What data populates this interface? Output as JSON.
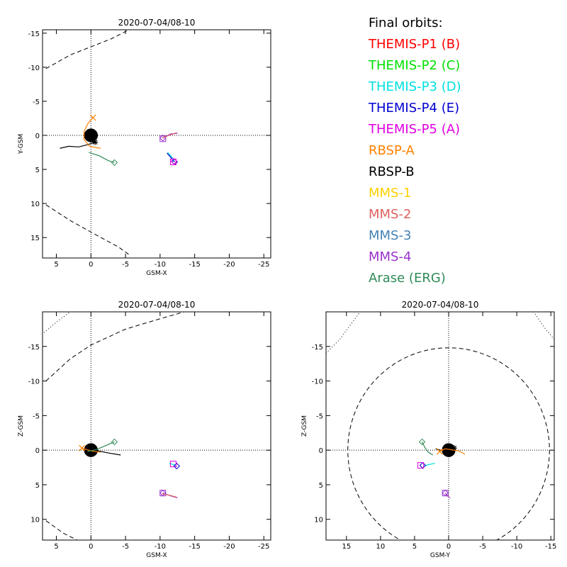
{
  "legend": {
    "title": "Final orbits:",
    "items": [
      {
        "label": "THEMIS-P1 (B)",
        "color": "#ff0000"
      },
      {
        "label": "THEMIS-P2 (C)",
        "color": "#00e000"
      },
      {
        "label": "THEMIS-P3 (D)",
        "color": "#00e0e0"
      },
      {
        "label": "THEMIS-P4 (E)",
        "color": "#0000d0"
      },
      {
        "label": "THEMIS-P5 (A)",
        "color": "#e000e0"
      },
      {
        "label": "RBSP-A",
        "color": "#ff8000"
      },
      {
        "label": "RBSP-B",
        "color": "#000000"
      },
      {
        "label": "MMS-1",
        "color": "#ffd000"
      },
      {
        "label": "MMS-2",
        "color": "#e06060"
      },
      {
        "label": "MMS-3",
        "color": "#4682b4"
      },
      {
        "label": "MMS-4",
        "color": "#9932cc"
      },
      {
        "label": "Arase (ERG)",
        "color": "#2e8b57"
      }
    ]
  },
  "chart_data": [
    {
      "type": "scatter",
      "title": "2020-07-04/08-10",
      "xlabel": "GSM-X",
      "ylabel": "Y-GSM",
      "xlim": [
        7,
        -26
      ],
      "ylim": [
        -15.5,
        18
      ],
      "xticks": [
        5,
        0,
        -5,
        -10,
        -15,
        -20,
        -25
      ],
      "yticks": [
        -15,
        -10,
        -5,
        0,
        5,
        10,
        15
      ],
      "xtick_labels": [
        "5",
        "0",
        "-5",
        "-10",
        "-15",
        "-20",
        "-25"
      ],
      "ytick_labels": [
        "-15",
        "-10",
        "-5",
        "0",
        "5",
        "10",
        "15"
      ],
      "earth": {
        "x": 0,
        "y": 0,
        "r": 1
      },
      "boundaries": [
        {
          "style": "dashed",
          "points": [
            [
              6.5,
              -9.8
            ],
            [
              3,
              -11.8
            ],
            [
              0,
              -13
            ],
            [
              -3,
              -14.2
            ],
            [
              -5.5,
              -15.5
            ]
          ]
        },
        {
          "style": "dashed",
          "points": [
            [
              6.5,
              10.2
            ],
            [
              3,
              12.5
            ],
            [
              0,
              14.2
            ],
            [
              -4,
              16.4
            ],
            [
              -5.5,
              17.5
            ]
          ]
        }
      ],
      "series": [
        {
          "color": "#000000",
          "marker": "asterisk",
          "points": [
            [
              4.5,
              1.9
            ],
            [
              3.2,
              1.6
            ],
            [
              1.8,
              1.7
            ],
            [
              0.6,
              1.4
            ],
            [
              -0.6,
              1.0
            ]
          ]
        },
        {
          "color": "#ff8000",
          "marker": "x",
          "points": [
            [
              -1.4,
              1.9
            ],
            [
              0.2,
              1.6
            ],
            [
              1.0,
              0.6
            ],
            [
              1.0,
              -0.6
            ],
            [
              0.4,
              -1.8
            ],
            [
              -0.3,
              -2.6
            ]
          ]
        },
        {
          "color": "#2e8b57",
          "marker": "diamond",
          "points": [
            [
              0.3,
              2.5
            ],
            [
              -1.2,
              3.0
            ],
            [
              -2.5,
              3.7
            ],
            [
              -3.4,
              4.0
            ]
          ]
        },
        {
          "color": "#0000d0",
          "marker": "diamond",
          "points": [
            [
              -11,
              2.6
            ],
            [
              -11.6,
              3.3
            ],
            [
              -12.1,
              3.9
            ]
          ]
        },
        {
          "color": "#00e0e0",
          "marker": "none",
          "points": [
            [
              -11.1,
              2.5
            ],
            [
              -11.7,
              3.2
            ],
            [
              -12.0,
              3.7
            ]
          ]
        },
        {
          "color": "#e000e0",
          "marker": "square",
          "points": [
            [
              -11.9,
              3.9
            ]
          ]
        },
        {
          "color": "#e000e0",
          "marker": "diamond",
          "points": [
            [
              -12.0,
              3.8
            ]
          ]
        },
        {
          "color": "#9932cc",
          "marker": "diamond",
          "points": [
            [
              -12.5,
              -0.3
            ],
            [
              -11.5,
              -0.2
            ],
            [
              -10.4,
              0.4
            ]
          ]
        },
        {
          "color": "#9932cc",
          "marker": "square",
          "points": [
            [
              -10.4,
              0.5
            ]
          ]
        },
        {
          "color": "#e06060",
          "marker": "none",
          "points": [
            [
              -12.4,
              -0.4
            ],
            [
              -11.3,
              0.0
            ],
            [
              -10.3,
              0.4
            ]
          ]
        }
      ]
    },
    {
      "type": "scatter",
      "title": "2020-07-04/08-10",
      "xlabel": "GSM-X",
      "ylabel": "Z-GSM",
      "xlim": [
        7,
        -26
      ],
      "ylim": [
        -20,
        13
      ],
      "xticks": [
        5,
        0,
        -5,
        -10,
        -15,
        -20,
        -25
      ],
      "yticks": [
        -15,
        -10,
        -5,
        0,
        5,
        10
      ],
      "xtick_labels": [
        "5",
        "0",
        "-5",
        "-10",
        "-15",
        "-20",
        "-25"
      ],
      "ytick_labels": [
        "-15",
        "-10",
        "-5",
        "0",
        "5",
        "10"
      ],
      "earth": {
        "x": 0,
        "y": 0,
        "r": 1
      },
      "boundaries": [
        {
          "style": "dashed",
          "points": [
            [
              6.5,
              10.2
            ],
            [
              4,
              12
            ],
            [
              2,
              13
            ]
          ]
        },
        {
          "style": "dashed",
          "points": [
            [
              6.5,
              -10
            ],
            [
              3,
              -13.2
            ],
            [
              0,
              -15.2
            ],
            [
              -5,
              -17.5
            ],
            [
              -10,
              -19
            ],
            [
              -13.5,
              -20
            ]
          ]
        },
        {
          "style": "dotted",
          "points": [
            [
              6.8,
              -17
            ],
            [
              5,
              -18.5
            ],
            [
              3,
              -20
            ]
          ]
        }
      ],
      "series": [
        {
          "color": "#000000",
          "marker": "asterisk",
          "points": [
            [
              -4.3,
              0.7
            ],
            [
              -2.5,
              0.4
            ],
            [
              -1.0,
              0.1
            ],
            [
              0.5,
              -0.3
            ]
          ]
        },
        {
          "color": "#ff8000",
          "marker": "x",
          "points": [
            [
              -1.4,
              0.3
            ],
            [
              0,
              0.1
            ],
            [
              1.3,
              -0.3
            ]
          ]
        },
        {
          "color": "#2e8b57",
          "marker": "diamond",
          "points": [
            [
              0.5,
              0.2
            ],
            [
              -0.8,
              -0.1
            ],
            [
              -2.0,
              -0.6
            ],
            [
              -3.4,
              -1.2
            ]
          ]
        },
        {
          "color": "#9932cc",
          "marker": "diamond",
          "points": [
            [
              -12.5,
              6.9
            ],
            [
              -11.5,
              6.6
            ],
            [
              -10.4,
              6.2
            ]
          ]
        },
        {
          "color": "#9932cc",
          "marker": "square",
          "points": [
            [
              -10.4,
              6.2
            ]
          ]
        },
        {
          "color": "#e06060",
          "marker": "none",
          "points": [
            [
              -12.4,
              6.8
            ],
            [
              -11.3,
              6.5
            ],
            [
              -10.3,
              6.3
            ]
          ]
        },
        {
          "color": "#00e0e0",
          "marker": "none",
          "points": [
            [
              -11.3,
              1.9
            ],
            [
              -12.0,
              2.1
            ],
            [
              -12.3,
              2.4
            ]
          ]
        },
        {
          "color": "#0000d0",
          "marker": "diamond",
          "points": [
            [
              -12.4,
              2.3
            ]
          ]
        },
        {
          "color": "#e000e0",
          "marker": "square",
          "points": [
            [
              -11.9,
              2.0
            ]
          ]
        }
      ]
    },
    {
      "type": "scatter",
      "title": "2020-07-04/08-10",
      "xlabel": "GSM-Y",
      "ylabel": "Z-GSM",
      "xlim": [
        18,
        -15.5
      ],
      "ylim": [
        -20,
        13
      ],
      "xticks": [
        15,
        10,
        5,
        0,
        -5,
        -10,
        -15
      ],
      "yticks": [
        -15,
        -10,
        -5,
        0,
        5,
        10
      ],
      "xtick_labels": [
        "15",
        "10",
        "5",
        "0",
        "-5",
        "-10",
        "-15"
      ],
      "ytick_labels": [
        "-15",
        "-10",
        "-5",
        "0",
        "5",
        "10"
      ],
      "earth": {
        "x": 0,
        "y": 0,
        "r": 1
      },
      "boundaries": [
        {
          "style": "dashed_circle",
          "cx": 0,
          "cy": 0,
          "r": 14.8
        },
        {
          "style": "dotted",
          "points": [
            [
              18,
              -14
            ],
            [
              16,
              -16
            ],
            [
              13,
              -20
            ]
          ]
        },
        {
          "style": "dotted",
          "points": [
            [
              -15.5,
              -16
            ],
            [
              -14,
              -17.8
            ],
            [
              -12.5,
              -20
            ]
          ]
        }
      ],
      "series": [
        {
          "color": "#000000",
          "marker": "asterisk",
          "points": [
            [
              1.9,
              -0.2
            ],
            [
              0.5,
              0.2
            ],
            [
              -0.8,
              -0.3
            ]
          ]
        },
        {
          "color": "#ff8000",
          "marker": "x",
          "points": [
            [
              -2.4,
              0.6
            ],
            [
              -1.5,
              0.1
            ],
            [
              0.5,
              -0.2
            ],
            [
              1.3,
              0.2
            ]
          ]
        },
        {
          "color": "#2e8b57",
          "marker": "diamond",
          "points": [
            [
              2.3,
              0.7
            ],
            [
              3.0,
              0.3
            ],
            [
              3.5,
              -0.4
            ],
            [
              3.9,
              -1.2
            ]
          ]
        },
        {
          "color": "#9932cc",
          "marker": "diamond",
          "points": [
            [
              -0.2,
              6.9
            ],
            [
              0.2,
              6.6
            ],
            [
              0.5,
              6.2
            ]
          ]
        },
        {
          "color": "#9932cc",
          "marker": "square",
          "points": [
            [
              0.5,
              6.2
            ]
          ]
        },
        {
          "color": "#00e0e0",
          "marker": "none",
          "points": [
            [
              2.0,
              1.9
            ],
            [
              3.0,
              2.1
            ],
            [
              3.6,
              2.3
            ]
          ]
        },
        {
          "color": "#0000d0",
          "marker": "diamond",
          "points": [
            [
              3.8,
              2.2
            ]
          ]
        },
        {
          "color": "#e000e0",
          "marker": "square",
          "points": [
            [
              4.1,
              2.2
            ]
          ]
        }
      ]
    }
  ]
}
